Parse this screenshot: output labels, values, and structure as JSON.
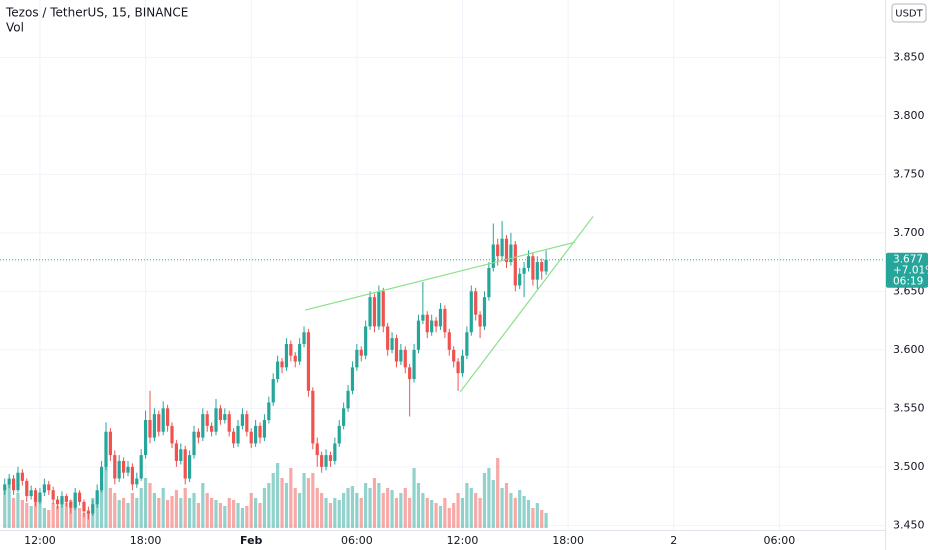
{
  "chart_data": {
    "type": "candlestick",
    "title": "Tezos / TetherUS, 15, BINANCE",
    "subtitle": "Vol",
    "currency": "USDT",
    "up_color": "#26a69a",
    "down_color": "#ef5350",
    "grid": true,
    "xlim": [
      9.73,
      60.0
    ],
    "ylim": [
      3.446,
      3.899
    ],
    "volume_lim": [
      0,
      100
    ],
    "xticks": [
      {
        "value": 12,
        "label": "12:00"
      },
      {
        "value": 18,
        "label": "18:00"
      },
      {
        "value": 24,
        "label": "Feb"
      },
      {
        "value": 30,
        "label": "06:00"
      },
      {
        "value": 36,
        "label": "12:00"
      },
      {
        "value": 42,
        "label": "18:00"
      },
      {
        "value": 48,
        "label": "2"
      },
      {
        "value": 54,
        "label": "06:00"
      }
    ],
    "yticks": [
      {
        "value": 3.45,
        "label": "3.450"
      },
      {
        "value": 3.5,
        "label": "3.500"
      },
      {
        "value": 3.55,
        "label": "3.550"
      },
      {
        "value": 3.6,
        "label": "3.600"
      },
      {
        "value": 3.65,
        "label": "3.650"
      },
      {
        "value": 3.7,
        "label": "3.700"
      },
      {
        "value": 3.75,
        "label": "3.750"
      },
      {
        "value": 3.8,
        "label": "3.800"
      },
      {
        "value": 3.85,
        "label": "3.850"
      }
    ],
    "last_price": {
      "value": 3.677,
      "label": "3.677"
    },
    "change": "+7.01%",
    "countdown": "06:19",
    "trendlines": [
      {
        "color": "#8be08b",
        "x": [
          27.06,
          42.4
        ],
        "values": [
          3.634,
          3.692
        ]
      },
      {
        "color": "#8be08b",
        "x": [
          35.87,
          43.42
        ],
        "values": [
          3.564,
          3.714
        ]
      }
    ],
    "x": [
      10,
      10.25,
      10.5,
      10.75,
      11,
      11.25,
      11.5,
      11.75,
      12,
      12.25,
      12.5,
      12.75,
      13,
      13.25,
      13.5,
      13.75,
      14,
      14.25,
      14.5,
      14.75,
      15,
      15.25,
      15.5,
      15.75,
      16,
      16.25,
      16.5,
      16.75,
      17,
      17.25,
      17.5,
      17.75,
      18,
      18.25,
      18.5,
      18.75,
      19,
      19.25,
      19.5,
      19.75,
      20,
      20.25,
      20.5,
      20.75,
      21,
      21.25,
      21.5,
      21.75,
      22,
      22.25,
      22.5,
      22.75,
      23,
      23.25,
      23.5,
      23.75,
      24,
      24.25,
      24.5,
      24.75,
      25,
      25.25,
      25.5,
      25.75,
      26,
      26.25,
      26.5,
      26.75,
      27,
      27.25,
      27.5,
      27.75,
      28,
      28.25,
      28.5,
      28.75,
      29,
      29.25,
      29.5,
      29.75,
      30,
      30.25,
      30.5,
      30.75,
      31,
      31.25,
      31.5,
      31.75,
      32,
      32.25,
      32.5,
      32.75,
      33,
      33.25,
      33.5,
      33.75,
      34,
      34.25,
      34.5,
      34.75,
      35,
      35.25,
      35.5,
      35.75,
      36,
      36.25,
      36.5,
      36.75,
      37,
      37.25,
      37.5,
      37.75,
      38,
      38.25,
      38.5,
      38.75,
      39,
      39.25,
      39.5,
      39.75,
      40,
      40.25,
      40.5,
      40.75
    ],
    "candles": [
      [
        3.48,
        3.49,
        3.476,
        3.485
      ],
      [
        3.485,
        3.494,
        3.482,
        3.49
      ],
      [
        3.49,
        3.493,
        3.476,
        3.48
      ],
      [
        3.48,
        3.5,
        3.478,
        3.495
      ],
      [
        3.495,
        3.498,
        3.484,
        3.488
      ],
      [
        3.488,
        3.49,
        3.47,
        3.475
      ],
      [
        3.475,
        3.484,
        3.472,
        3.48
      ],
      [
        3.48,
        3.482,
        3.466,
        3.47
      ],
      [
        3.47,
        3.482,
        3.468,
        3.478
      ],
      [
        3.478,
        3.49,
        3.475,
        3.485
      ],
      [
        3.485,
        3.488,
        3.476,
        3.48
      ],
      [
        3.48,
        3.483,
        3.468,
        3.472
      ],
      [
        3.472,
        3.475,
        3.464,
        3.468
      ],
      [
        3.468,
        3.479,
        3.465,
        3.475
      ],
      [
        3.475,
        3.477,
        3.466,
        3.47
      ],
      [
        3.47,
        3.472,
        3.46,
        3.465
      ],
      [
        3.465,
        3.482,
        3.463,
        3.478
      ],
      [
        3.478,
        3.48,
        3.467,
        3.47
      ],
      [
        3.47,
        3.472,
        3.457,
        3.462
      ],
      [
        3.462,
        3.466,
        3.455,
        3.46
      ],
      [
        3.46,
        3.472,
        3.458,
        3.468
      ],
      [
        3.468,
        3.485,
        3.465,
        3.48
      ],
      [
        3.48,
        3.505,
        3.478,
        3.5
      ],
      [
        3.5,
        3.538,
        3.497,
        3.53
      ],
      [
        3.53,
        3.533,
        3.505,
        3.51
      ],
      [
        3.51,
        3.514,
        3.485,
        3.49
      ],
      [
        3.49,
        3.51,
        3.487,
        3.505
      ],
      [
        3.505,
        3.508,
        3.49,
        3.495
      ],
      [
        3.495,
        3.505,
        3.492,
        3.5
      ],
      [
        3.5,
        3.503,
        3.48,
        3.485
      ],
      [
        3.485,
        3.495,
        3.482,
        3.49
      ],
      [
        3.49,
        3.515,
        3.488,
        3.51
      ],
      [
        3.51,
        3.548,
        3.507,
        3.54
      ],
      [
        3.54,
        3.565,
        3.52,
        3.525
      ],
      [
        3.525,
        3.55,
        3.522,
        3.545
      ],
      [
        3.545,
        3.548,
        3.526,
        3.53
      ],
      [
        3.53,
        3.556,
        3.527,
        3.55
      ],
      [
        3.55,
        3.553,
        3.53,
        3.535
      ],
      [
        3.535,
        3.538,
        3.516,
        3.52
      ],
      [
        3.52,
        3.523,
        3.5,
        3.505
      ],
      [
        3.505,
        3.52,
        3.502,
        3.515
      ],
      [
        3.515,
        3.518,
        3.485,
        3.49
      ],
      [
        3.49,
        3.514,
        3.487,
        3.51
      ],
      [
        3.51,
        3.535,
        3.507,
        3.53
      ],
      [
        3.53,
        3.533,
        3.52,
        3.525
      ],
      [
        3.525,
        3.55,
        3.522,
        3.545
      ],
      [
        3.545,
        3.548,
        3.53,
        3.535
      ],
      [
        3.535,
        3.538,
        3.526,
        3.53
      ],
      [
        3.53,
        3.558,
        3.527,
        3.55
      ],
      [
        3.55,
        3.553,
        3.536,
        3.54
      ],
      [
        3.54,
        3.55,
        3.537,
        3.545
      ],
      [
        3.545,
        3.548,
        3.526,
        3.53
      ],
      [
        3.53,
        3.533,
        3.516,
        3.52
      ],
      [
        3.52,
        3.54,
        3.517,
        3.535
      ],
      [
        3.535,
        3.55,
        3.532,
        3.545
      ],
      [
        3.545,
        3.548,
        3.526,
        3.53
      ],
      [
        3.53,
        3.533,
        3.516,
        3.52
      ],
      [
        3.52,
        3.54,
        3.517,
        3.535
      ],
      [
        3.535,
        3.538,
        3.52,
        3.525
      ],
      [
        3.525,
        3.545,
        3.522,
        3.54
      ],
      [
        3.54,
        3.56,
        3.537,
        3.555
      ],
      [
        3.555,
        3.58,
        3.552,
        3.575
      ],
      [
        3.575,
        3.595,
        3.572,
        3.59
      ],
      [
        3.59,
        3.593,
        3.58,
        3.585
      ],
      [
        3.585,
        3.61,
        3.582,
        3.605
      ],
      [
        3.605,
        3.608,
        3.59,
        3.595
      ],
      [
        3.595,
        3.598,
        3.585,
        3.59
      ],
      [
        3.59,
        3.61,
        3.587,
        3.605
      ],
      [
        3.605,
        3.62,
        3.602,
        3.615
      ],
      [
        3.615,
        3.618,
        3.56,
        3.565
      ],
      [
        3.565,
        3.568,
        3.515,
        3.52
      ],
      [
        3.52,
        3.525,
        3.5,
        3.51
      ],
      [
        3.51,
        3.513,
        3.495,
        3.5
      ],
      [
        3.5,
        3.515,
        3.497,
        3.51
      ],
      [
        3.51,
        3.513,
        3.5,
        3.505
      ],
      [
        3.505,
        3.525,
        3.502,
        3.52
      ],
      [
        3.52,
        3.54,
        3.517,
        3.535
      ],
      [
        3.535,
        3.555,
        3.532,
        3.55
      ],
      [
        3.55,
        3.57,
        3.547,
        3.565
      ],
      [
        3.565,
        3.59,
        3.562,
        3.585
      ],
      [
        3.585,
        3.605,
        3.582,
        3.6
      ],
      [
        3.6,
        3.603,
        3.59,
        3.595
      ],
      [
        3.595,
        3.625,
        3.592,
        3.62
      ],
      [
        3.62,
        3.65,
        3.617,
        3.645
      ],
      [
        3.645,
        3.648,
        3.615,
        3.62
      ],
      [
        3.62,
        3.655,
        3.617,
        3.65
      ],
      [
        3.65,
        3.653,
        3.615,
        3.62
      ],
      [
        3.62,
        3.623,
        3.595,
        3.6
      ],
      [
        3.6,
        3.615,
        3.597,
        3.61
      ],
      [
        3.61,
        3.613,
        3.585,
        3.59
      ],
      [
        3.59,
        3.605,
        3.587,
        3.6
      ],
      [
        3.6,
        3.603,
        3.58,
        3.585
      ],
      [
        3.585,
        3.588,
        3.543,
        3.575
      ],
      [
        3.575,
        3.605,
        3.572,
        3.6
      ],
      [
        3.6,
        3.63,
        3.597,
        3.625
      ],
      [
        3.625,
        3.658,
        3.622,
        3.63
      ],
      [
        3.63,
        3.633,
        3.61,
        3.615
      ],
      [
        3.615,
        3.63,
        3.612,
        3.625
      ],
      [
        3.625,
        3.628,
        3.615,
        3.62
      ],
      [
        3.62,
        3.64,
        3.617,
        3.635
      ],
      [
        3.635,
        3.638,
        3.61,
        3.615
      ],
      [
        3.615,
        3.618,
        3.595,
        3.6
      ],
      [
        3.6,
        3.603,
        3.585,
        3.59
      ],
      [
        3.59,
        3.593,
        3.565,
        3.58
      ],
      [
        3.58,
        3.6,
        3.577,
        3.595
      ],
      [
        3.595,
        3.62,
        3.592,
        3.615
      ],
      [
        3.615,
        3.655,
        3.612,
        3.65
      ],
      [
        3.65,
        3.653,
        3.625,
        3.63
      ],
      [
        3.63,
        3.633,
        3.61,
        3.62
      ],
      [
        3.62,
        3.65,
        3.617,
        3.645
      ],
      [
        3.645,
        3.675,
        3.642,
        3.67
      ],
      [
        3.67,
        3.708,
        3.667,
        3.69
      ],
      [
        3.69,
        3.695,
        3.672,
        3.68
      ],
      [
        3.68,
        3.71,
        3.677,
        3.695
      ],
      [
        3.695,
        3.698,
        3.67,
        3.675
      ],
      [
        3.675,
        3.7,
        3.672,
        3.69
      ],
      [
        3.69,
        3.693,
        3.65,
        3.655
      ],
      [
        3.655,
        3.67,
        3.652,
        3.665
      ],
      [
        3.665,
        3.675,
        3.645,
        3.67
      ],
      [
        3.67,
        3.685,
        3.667,
        3.68
      ],
      [
        3.68,
        3.683,
        3.655,
        3.66
      ],
      [
        3.66,
        3.68,
        3.652,
        3.675
      ],
      [
        3.675,
        3.678,
        3.66,
        3.667
      ],
      [
        3.667,
        3.685,
        3.664,
        3.677
      ]
    ],
    "volume": [
      40,
      45,
      30,
      35,
      28,
      25,
      22,
      30,
      27,
      20,
      18,
      25,
      22,
      30,
      25,
      28,
      35,
      20,
      15,
      18,
      30,
      35,
      45,
      62,
      40,
      35,
      28,
      30,
      25,
      35,
      30,
      40,
      50,
      45,
      35,
      30,
      40,
      28,
      32,
      38,
      30,
      40,
      30,
      35,
      25,
      45,
      35,
      30,
      28,
      25,
      22,
      30,
      28,
      25,
      20,
      22,
      35,
      30,
      25,
      40,
      45,
      55,
      65,
      50,
      45,
      60,
      40,
      35,
      55,
      50,
      55,
      40,
      35,
      30,
      25,
      30,
      28,
      35,
      40,
      42,
      35,
      30,
      45,
      40,
      50,
      45,
      35,
      40,
      38,
      30,
      35,
      40,
      30,
      60,
      45,
      35,
      30,
      28,
      25,
      22,
      30,
      20,
      25,
      35,
      30,
      45,
      40,
      35,
      30,
      55,
      60,
      48,
      70,
      40,
      45,
      35,
      30,
      38,
      32,
      28,
      20,
      25,
      18,
      15
    ]
  }
}
